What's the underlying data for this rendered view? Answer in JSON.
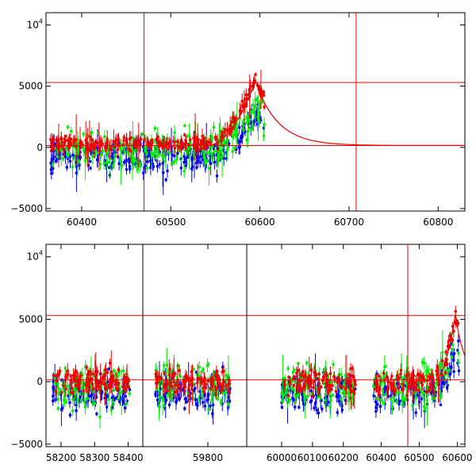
{
  "chart_data": [
    {
      "type": "scatter",
      "title": "",
      "xlabel": "",
      "ylabel": "",
      "xlim": [
        60360,
        60830
      ],
      "ylim": [
        -5200,
        11000
      ],
      "x_ticks": [
        60400,
        60500,
        60600,
        60700,
        60800
      ],
      "y_ticks": [
        {
          "value": -5000,
          "label": "−5000"
        },
        {
          "value": 0,
          "label": "0"
        },
        {
          "value": 5000,
          "label": "5000"
        },
        {
          "value": 10000,
          "label": "10",
          "sup": "4"
        }
      ],
      "hlines": [
        5300,
        150
      ],
      "vlines": [
        60470,
        60708
      ],
      "series": [
        {
          "color": "#0000ee",
          "x_range": [
            60365,
            60605
          ],
          "center": -800,
          "spread": 900
        },
        {
          "color": "#00ee00",
          "x_range": [
            60365,
            60605
          ],
          "center": -300,
          "spread": 1100
        },
        {
          "color": "#ee0000",
          "x_range": [
            60365,
            60605
          ],
          "center": 300,
          "spread": 400
        }
      ],
      "model_curve": {
        "color": "#ee0000",
        "peak_x": 60595,
        "peak_y": 5400,
        "decay_days": 25,
        "baseline": 150
      }
    },
    {
      "type": "scatter",
      "title": "",
      "xlabel": "",
      "ylabel": "",
      "ylim": [
        -5200,
        11000
      ],
      "x_ticks": [
        58200,
        58300,
        58400,
        59800,
        60000,
        60100,
        60200,
        60400,
        60500,
        60600
      ],
      "segments": [
        {
          "xlim": [
            58160,
            58420
          ]
        },
        {
          "xlim": [
            59620,
            59900
          ]
        },
        {
          "xlim": [
            59910,
            60270
          ]
        },
        {
          "xlim": [
            60370,
            60620
          ]
        }
      ],
      "y_ticks": [
        {
          "value": -5000,
          "label": "−5000"
        },
        {
          "value": 0,
          "label": "0"
        },
        {
          "value": 5000,
          "label": "5000"
        },
        {
          "value": 10000,
          "label": "10",
          "sup": "4"
        }
      ],
      "hlines": [
        5300,
        150
      ],
      "vlines": [
        60470
      ],
      "series": [
        {
          "color": "#0000ee",
          "center": -900,
          "spread": 1000
        },
        {
          "color": "#00ee00",
          "center": -300,
          "spread": 1200
        },
        {
          "color": "#ee0000",
          "center": 0,
          "spread": 700
        }
      ],
      "model_curve": {
        "color": "#ee0000",
        "peak_x": 60595,
        "peak_y": 5400,
        "decay_days": 25,
        "baseline": 150
      }
    }
  ]
}
